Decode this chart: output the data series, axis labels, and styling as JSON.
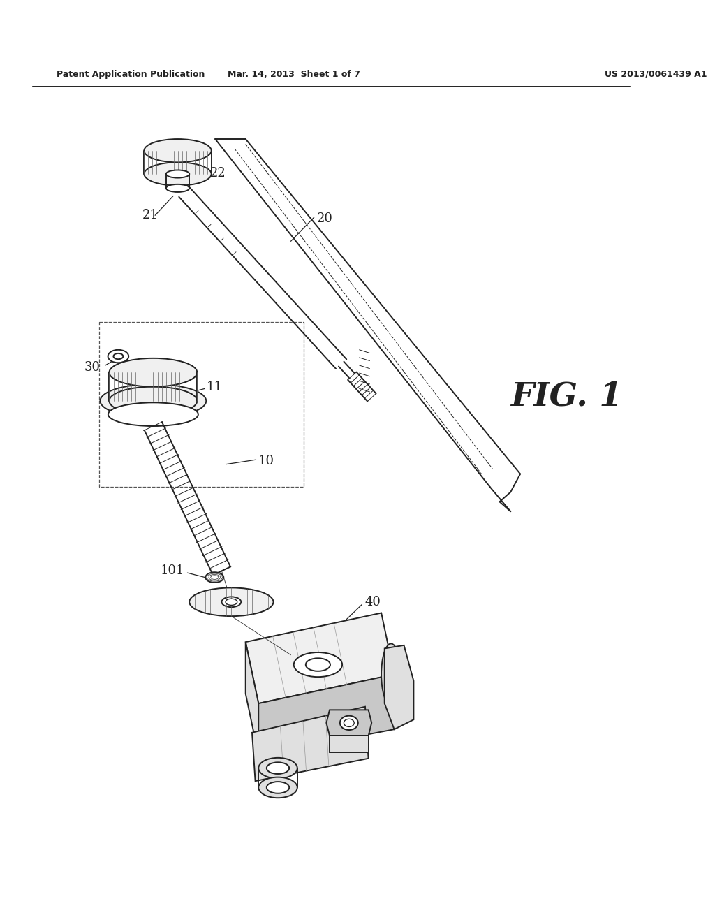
{
  "bg_color": "#ffffff",
  "line_color": "#222222",
  "header_left": "Patent Application Publication",
  "header_center": "Mar. 14, 2013  Sheet 1 of 7",
  "header_right": "US 2013/0061439 A1",
  "fig_label": "FIG. 1",
  "figsize": [
    10.24,
    13.2
  ],
  "dpi": 100,
  "lw_main": 1.4,
  "lw_thin": 0.8,
  "lw_detail": 0.6,
  "knurl_color": "#aaaaaa",
  "fill_light": "#f0f0f0",
  "fill_mid": "#e0e0e0",
  "fill_dark": "#c8c8c8"
}
